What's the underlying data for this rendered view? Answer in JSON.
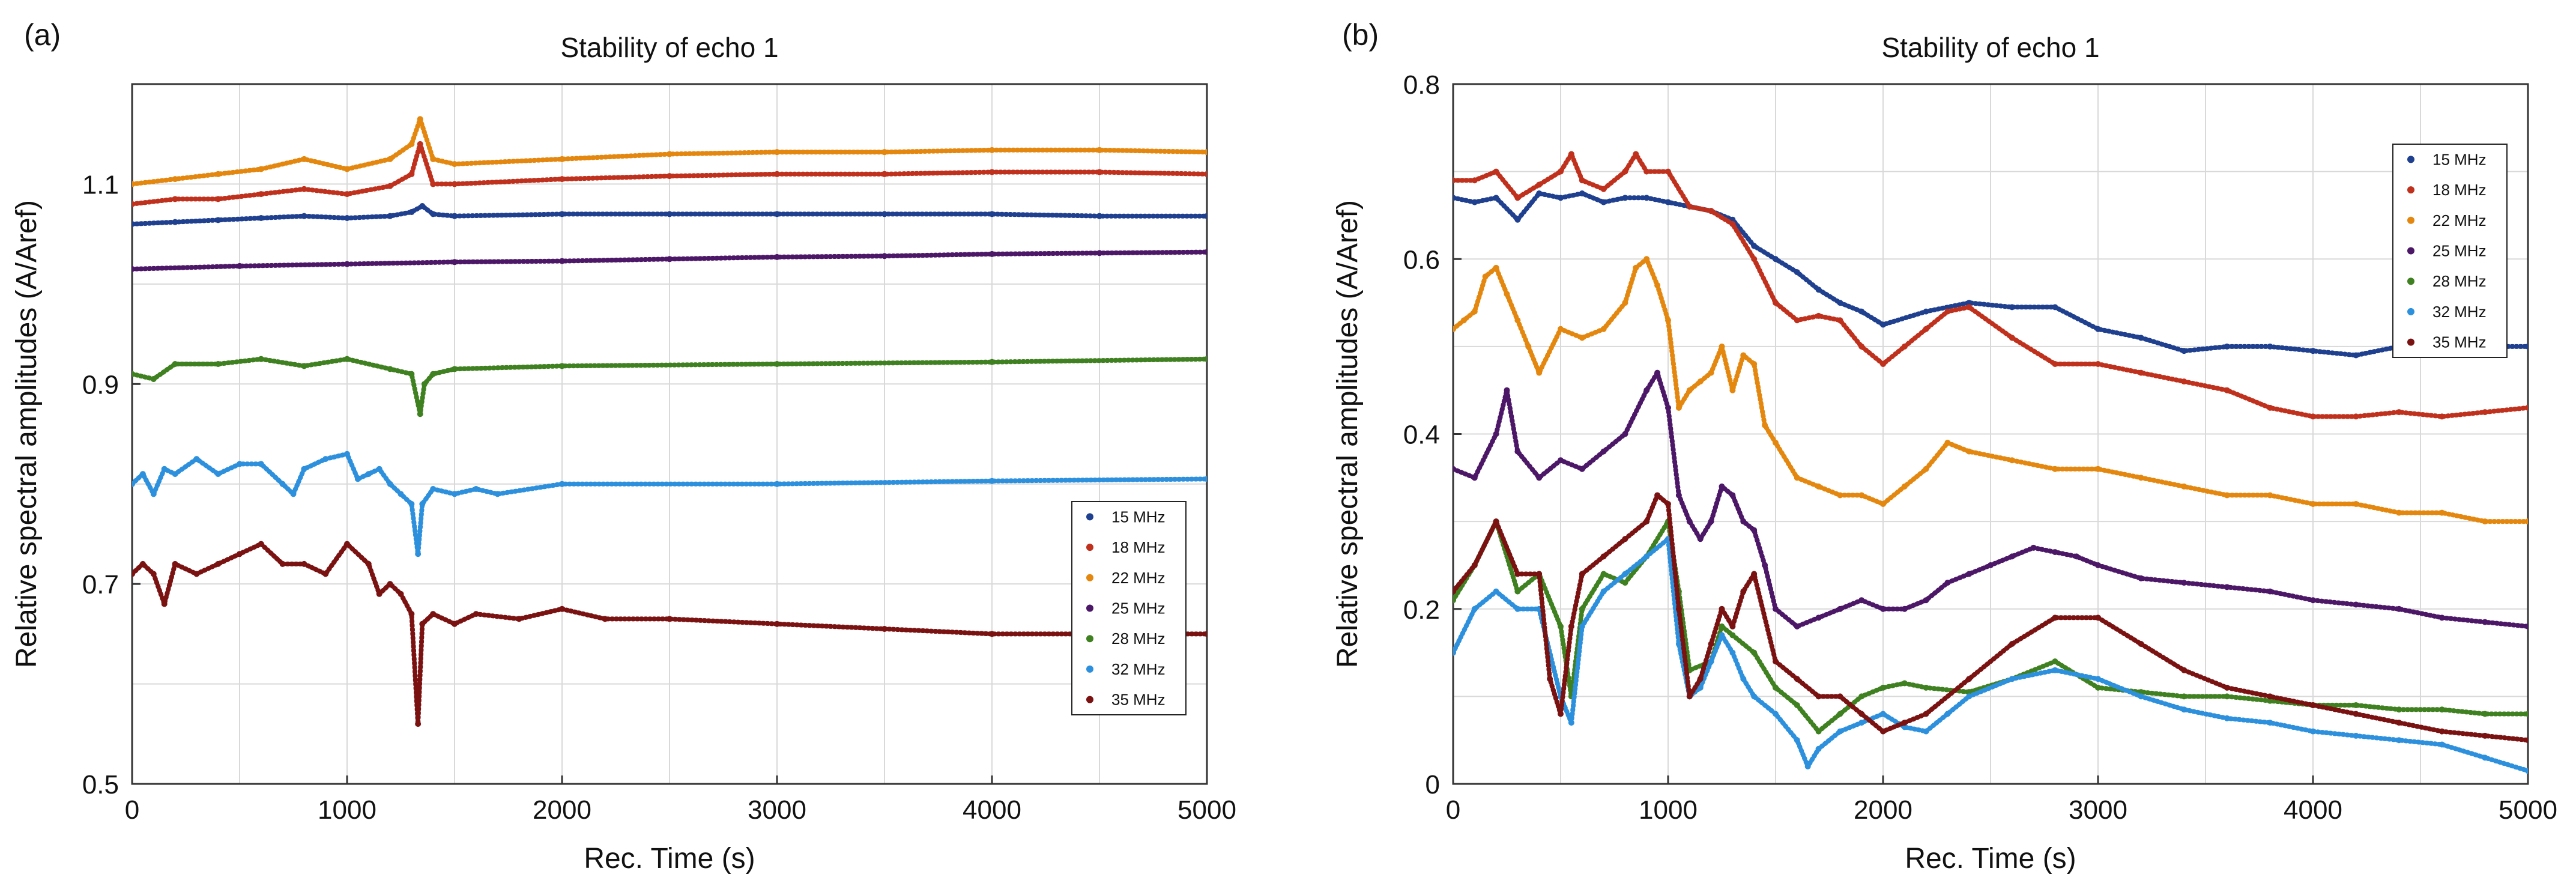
{
  "chart_data": [
    {
      "panel_label": "(a)",
      "type": "scatter",
      "title": "Stability of echo 1",
      "xlabel": "Rec. Time (s)",
      "ylabel": "Relative spectral amplitudes (A/Aref)",
      "xlim": [
        0,
        5000
      ],
      "ylim": [
        0.5,
        1.2
      ],
      "xticks": [
        0,
        1000,
        2000,
        3000,
        4000,
        5000
      ],
      "yticks": [
        0.5,
        0.7,
        0.9,
        1.1
      ],
      "grid": true,
      "legend_position": "lower-right",
      "series": [
        {
          "name": "15 MHz",
          "color": "#1f3f8f",
          "x": [
            0,
            200,
            400,
            600,
            800,
            1000,
            1200,
            1300,
            1350,
            1400,
            1500,
            2000,
            2500,
            3000,
            3500,
            4000,
            4500,
            5000
          ],
          "y": [
            1.06,
            1.062,
            1.064,
            1.066,
            1.068,
            1.066,
            1.068,
            1.072,
            1.078,
            1.07,
            1.068,
            1.07,
            1.07,
            1.07,
            1.07,
            1.07,
            1.068,
            1.068
          ]
        },
        {
          "name": "18 MHz",
          "color": "#c0311d",
          "x": [
            0,
            200,
            400,
            600,
            800,
            1000,
            1200,
            1300,
            1340,
            1400,
            1500,
            2000,
            2500,
            3000,
            3500,
            4000,
            4500,
            5000
          ],
          "y": [
            1.08,
            1.085,
            1.085,
            1.09,
            1.095,
            1.09,
            1.098,
            1.11,
            1.14,
            1.1,
            1.1,
            1.105,
            1.108,
            1.11,
            1.11,
            1.112,
            1.112,
            1.11
          ]
        },
        {
          "name": "22 MHz",
          "color": "#e3870f",
          "x": [
            0,
            200,
            400,
            600,
            800,
            1000,
            1200,
            1300,
            1340,
            1400,
            1500,
            2000,
            2500,
            3000,
            3500,
            4000,
            4500,
            5000
          ],
          "y": [
            1.1,
            1.105,
            1.11,
            1.115,
            1.125,
            1.115,
            1.125,
            1.14,
            1.165,
            1.125,
            1.12,
            1.125,
            1.13,
            1.132,
            1.132,
            1.134,
            1.134,
            1.132
          ]
        },
        {
          "name": "25 MHz",
          "color": "#4b1766",
          "x": [
            0,
            500,
            1000,
            1500,
            2000,
            2500,
            3000,
            3500,
            4000,
            4500,
            5000
          ],
          "y": [
            1.015,
            1.018,
            1.02,
            1.022,
            1.023,
            1.025,
            1.027,
            1.028,
            1.03,
            1.031,
            1.032
          ]
        },
        {
          "name": "28 MHz",
          "color": "#3f8020",
          "x": [
            0,
            100,
            200,
            400,
            600,
            800,
            1000,
            1200,
            1300,
            1340,
            1360,
            1400,
            1500,
            2000,
            3000,
            4000,
            5000
          ],
          "y": [
            0.91,
            0.905,
            0.92,
            0.92,
            0.925,
            0.918,
            0.925,
            0.915,
            0.91,
            0.87,
            0.9,
            0.91,
            0.915,
            0.918,
            0.92,
            0.922,
            0.925
          ]
        },
        {
          "name": "32 MHz",
          "color": "#2d90dd",
          "x": [
            0,
            50,
            100,
            150,
            200,
            300,
            400,
            500,
            600,
            700,
            750,
            800,
            900,
            1000,
            1050,
            1100,
            1150,
            1200,
            1250,
            1300,
            1330,
            1350,
            1400,
            1500,
            1600,
            1700,
            2000,
            3000,
            4000,
            5000
          ],
          "y": [
            0.8,
            0.81,
            0.79,
            0.815,
            0.81,
            0.825,
            0.81,
            0.82,
            0.82,
            0.8,
            0.79,
            0.815,
            0.825,
            0.83,
            0.805,
            0.81,
            0.815,
            0.8,
            0.79,
            0.78,
            0.73,
            0.78,
            0.795,
            0.79,
            0.795,
            0.79,
            0.8,
            0.8,
            0.803,
            0.805
          ]
        },
        {
          "name": "35 MHz",
          "color": "#7a1212",
          "x": [
            0,
            50,
            100,
            150,
            200,
            300,
            400,
            500,
            600,
            700,
            800,
            900,
            1000,
            1100,
            1150,
            1200,
            1250,
            1300,
            1330,
            1350,
            1400,
            1500,
            1600,
            1800,
            2000,
            2200,
            2500,
            3000,
            3500,
            4000,
            4500,
            5000
          ],
          "y": [
            0.71,
            0.72,
            0.71,
            0.68,
            0.72,
            0.71,
            0.72,
            0.73,
            0.74,
            0.72,
            0.72,
            0.71,
            0.74,
            0.72,
            0.69,
            0.7,
            0.69,
            0.67,
            0.56,
            0.66,
            0.67,
            0.66,
            0.67,
            0.665,
            0.675,
            0.665,
            0.665,
            0.66,
            0.655,
            0.65,
            0.65,
            0.65
          ]
        }
      ]
    },
    {
      "panel_label": "(b)",
      "type": "scatter",
      "title": "Stability of echo 1",
      "xlabel": "Rec. Time (s)",
      "ylabel": "Relative spectral amplitudes (A/Aref)",
      "xlim": [
        0,
        5000
      ],
      "ylim": [
        0,
        0.8
      ],
      "xticks": [
        0,
        1000,
        2000,
        3000,
        4000,
        5000
      ],
      "yticks": [
        0,
        0.2,
        0.4,
        0.6,
        0.8
      ],
      "grid": true,
      "legend_position": "top-right",
      "series": [
        {
          "name": "15 MHz",
          "color": "#1f3f8f",
          "x": [
            0,
            100,
            200,
            300,
            400,
            500,
            600,
            700,
            800,
            900,
            1000,
            1100,
            1200,
            1300,
            1400,
            1500,
            1600,
            1700,
            1800,
            1900,
            2000,
            2200,
            2400,
            2600,
            2800,
            3000,
            3200,
            3400,
            3600,
            3800,
            4000,
            4200,
            4400,
            4600,
            4800,
            5000
          ],
          "y": [
            0.67,
            0.665,
            0.67,
            0.645,
            0.675,
            0.67,
            0.675,
            0.665,
            0.67,
            0.67,
            0.665,
            0.66,
            0.655,
            0.645,
            0.615,
            0.6,
            0.585,
            0.565,
            0.55,
            0.54,
            0.525,
            0.54,
            0.55,
            0.545,
            0.545,
            0.52,
            0.51,
            0.495,
            0.5,
            0.5,
            0.495,
            0.49,
            0.5,
            0.5,
            0.5,
            0.5
          ]
        },
        {
          "name": "18 MHz",
          "color": "#c0311d",
          "x": [
            0,
            100,
            200,
            300,
            400,
            500,
            550,
            600,
            700,
            800,
            850,
            900,
            1000,
            1100,
            1200,
            1300,
            1400,
            1500,
            1600,
            1700,
            1800,
            1900,
            2000,
            2100,
            2200,
            2300,
            2400,
            2600,
            2800,
            3000,
            3200,
            3400,
            3600,
            3800,
            4000,
            4200,
            4400,
            4600,
            4800,
            5000
          ],
          "y": [
            0.69,
            0.69,
            0.7,
            0.67,
            0.685,
            0.7,
            0.72,
            0.69,
            0.68,
            0.7,
            0.72,
            0.7,
            0.7,
            0.66,
            0.655,
            0.64,
            0.6,
            0.55,
            0.53,
            0.535,
            0.53,
            0.5,
            0.48,
            0.5,
            0.52,
            0.54,
            0.545,
            0.51,
            0.48,
            0.48,
            0.47,
            0.46,
            0.45,
            0.43,
            0.42,
            0.42,
            0.425,
            0.42,
            0.425,
            0.43
          ]
        },
        {
          "name": "22 MHz",
          "color": "#e3870f",
          "x": [
            0,
            50,
            100,
            150,
            200,
            250,
            300,
            350,
            400,
            500,
            600,
            700,
            800,
            850,
            900,
            950,
            1000,
            1050,
            1100,
            1150,
            1200,
            1250,
            1300,
            1350,
            1400,
            1450,
            1500,
            1600,
            1700,
            1800,
            1900,
            2000,
            2100,
            2200,
            2300,
            2400,
            2600,
            2800,
            3000,
            3200,
            3400,
            3600,
            3800,
            4000,
            4200,
            4400,
            4600,
            4800,
            5000
          ],
          "y": [
            0.52,
            0.53,
            0.54,
            0.58,
            0.59,
            0.56,
            0.53,
            0.5,
            0.47,
            0.52,
            0.51,
            0.52,
            0.55,
            0.59,
            0.6,
            0.57,
            0.53,
            0.43,
            0.45,
            0.46,
            0.47,
            0.5,
            0.45,
            0.49,
            0.48,
            0.41,
            0.39,
            0.35,
            0.34,
            0.33,
            0.33,
            0.32,
            0.34,
            0.36,
            0.39,
            0.38,
            0.37,
            0.36,
            0.36,
            0.35,
            0.34,
            0.33,
            0.33,
            0.32,
            0.32,
            0.31,
            0.31,
            0.3,
            0.3
          ]
        },
        {
          "name": "25 MHz",
          "color": "#4b1766",
          "x": [
            0,
            100,
            200,
            250,
            300,
            400,
            500,
            600,
            700,
            800,
            900,
            950,
            1000,
            1050,
            1100,
            1150,
            1200,
            1250,
            1300,
            1350,
            1400,
            1450,
            1500,
            1600,
            1700,
            1800,
            1900,
            2000,
            2100,
            2200,
            2300,
            2400,
            2500,
            2600,
            2700,
            2800,
            2900,
            3000,
            3200,
            3400,
            3600,
            3800,
            4000,
            4200,
            4400,
            4600,
            4800,
            5000
          ],
          "y": [
            0.36,
            0.35,
            0.4,
            0.45,
            0.38,
            0.35,
            0.37,
            0.36,
            0.38,
            0.4,
            0.45,
            0.47,
            0.43,
            0.33,
            0.3,
            0.28,
            0.3,
            0.34,
            0.33,
            0.3,
            0.29,
            0.25,
            0.2,
            0.18,
            0.19,
            0.2,
            0.21,
            0.2,
            0.2,
            0.21,
            0.23,
            0.24,
            0.25,
            0.26,
            0.27,
            0.265,
            0.26,
            0.25,
            0.235,
            0.23,
            0.225,
            0.22,
            0.21,
            0.205,
            0.2,
            0.19,
            0.185,
            0.18
          ]
        },
        {
          "name": "28 MHz",
          "color": "#3f8020",
          "x": [
            0,
            100,
            200,
            300,
            400,
            500,
            550,
            600,
            700,
            800,
            900,
            1000,
            1050,
            1100,
            1200,
            1250,
            1300,
            1400,
            1500,
            1600,
            1700,
            1800,
            1900,
            2000,
            2100,
            2200,
            2400,
            2600,
            2800,
            3000,
            3200,
            3400,
            3600,
            3800,
            4000,
            4200,
            4400,
            4600,
            4800,
            5000
          ],
          "y": [
            0.21,
            0.25,
            0.3,
            0.22,
            0.24,
            0.18,
            0.1,
            0.2,
            0.24,
            0.23,
            0.26,
            0.3,
            0.22,
            0.13,
            0.14,
            0.18,
            0.17,
            0.15,
            0.11,
            0.09,
            0.06,
            0.08,
            0.1,
            0.11,
            0.115,
            0.11,
            0.105,
            0.12,
            0.14,
            0.11,
            0.105,
            0.1,
            0.1,
            0.095,
            0.09,
            0.09,
            0.085,
            0.085,
            0.08,
            0.08
          ]
        },
        {
          "name": "32 MHz",
          "color": "#2d90dd",
          "x": [
            0,
            100,
            200,
            300,
            400,
            500,
            550,
            600,
            700,
            800,
            900,
            1000,
            1050,
            1100,
            1150,
            1200,
            1250,
            1300,
            1350,
            1400,
            1500,
            1600,
            1650,
            1700,
            1800,
            1900,
            2000,
            2100,
            2200,
            2300,
            2400,
            2600,
            2800,
            3000,
            3200,
            3400,
            3600,
            3800,
            4000,
            4200,
            4400,
            4600,
            4800,
            5000
          ],
          "y": [
            0.15,
            0.2,
            0.22,
            0.2,
            0.2,
            0.1,
            0.07,
            0.18,
            0.22,
            0.24,
            0.26,
            0.28,
            0.16,
            0.1,
            0.11,
            0.14,
            0.17,
            0.15,
            0.12,
            0.1,
            0.08,
            0.05,
            0.02,
            0.04,
            0.06,
            0.07,
            0.08,
            0.065,
            0.06,
            0.08,
            0.1,
            0.12,
            0.13,
            0.12,
            0.1,
            0.085,
            0.075,
            0.07,
            0.06,
            0.055,
            0.05,
            0.045,
            0.03,
            0.015
          ]
        },
        {
          "name": "35 MHz",
          "color": "#7a1212",
          "x": [
            0,
            100,
            200,
            300,
            400,
            450,
            500,
            550,
            600,
            700,
            800,
            900,
            950,
            1000,
            1050,
            1100,
            1150,
            1200,
            1250,
            1300,
            1350,
            1400,
            1500,
            1600,
            1700,
            1800,
            1900,
            2000,
            2100,
            2200,
            2400,
            2600,
            2800,
            3000,
            3200,
            3400,
            3600,
            3800,
            4000,
            4200,
            4400,
            4600,
            4800,
            5000
          ],
          "y": [
            0.22,
            0.25,
            0.3,
            0.24,
            0.24,
            0.12,
            0.08,
            0.18,
            0.24,
            0.26,
            0.28,
            0.3,
            0.33,
            0.32,
            0.2,
            0.1,
            0.12,
            0.16,
            0.2,
            0.18,
            0.22,
            0.24,
            0.14,
            0.12,
            0.1,
            0.1,
            0.08,
            0.06,
            0.07,
            0.08,
            0.12,
            0.16,
            0.19,
            0.19,
            0.16,
            0.13,
            0.11,
            0.1,
            0.09,
            0.08,
            0.07,
            0.06,
            0.055,
            0.05
          ]
        }
      ]
    }
  ]
}
